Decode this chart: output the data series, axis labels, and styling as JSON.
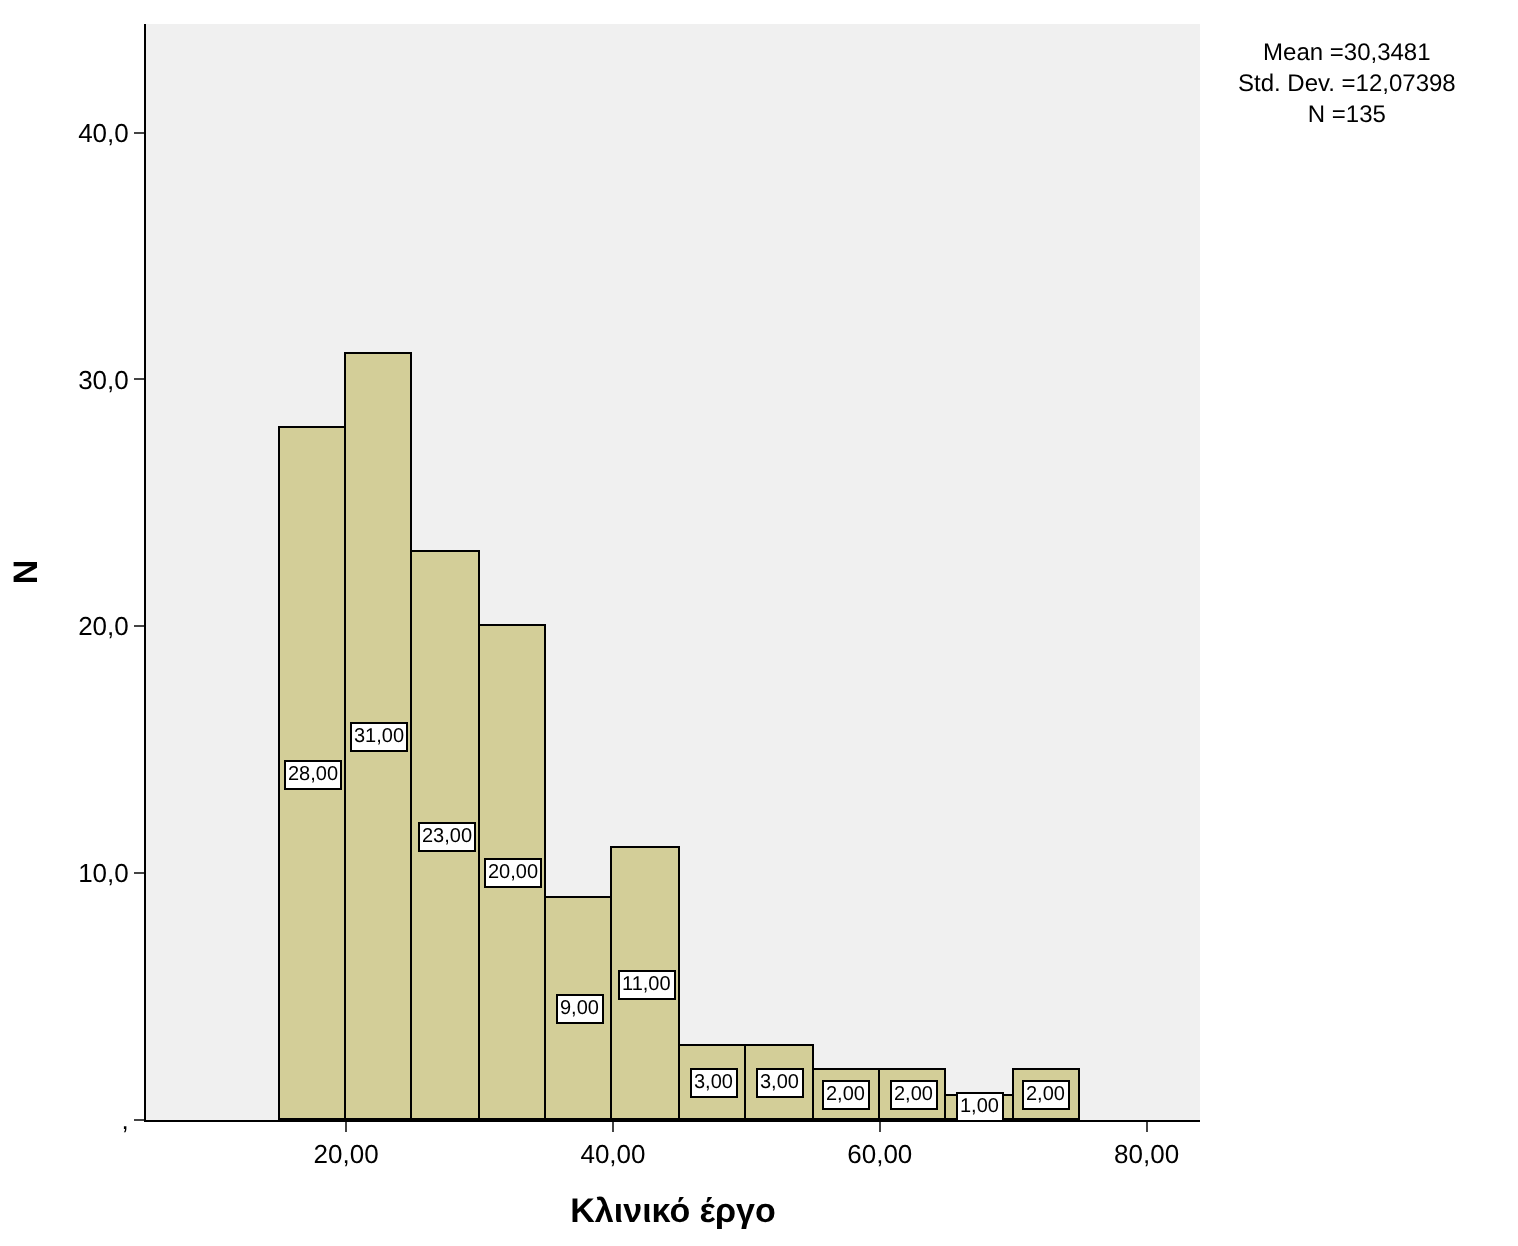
{
  "chart_data": {
    "type": "histogram",
    "xlabel": "Κλινικό έργο",
    "ylabel": "N",
    "bins": [
      15,
      20,
      25,
      30,
      35,
      40,
      45,
      50,
      55,
      60,
      65,
      70,
      75
    ],
    "values": [
      28,
      31,
      23,
      20,
      9,
      11,
      3,
      3,
      2,
      2,
      1,
      2
    ],
    "value_labels": [
      "28,00",
      "31,00",
      "23,00",
      "20,00",
      "9,00",
      "11,00",
      "3,00",
      "3,00",
      "2,00",
      "2,00",
      "1,00",
      "2,00"
    ],
    "color": "#d3ce98",
    "xlim": [
      5,
      84
    ],
    "xticks": [
      {
        "value": 20,
        "label": "20,00"
      },
      {
        "value": 40,
        "label": "40,00"
      },
      {
        "value": 60,
        "label": "60,00"
      },
      {
        "value": 80,
        "label": "80,00"
      }
    ],
    "ylim": [
      0,
      44.4
    ],
    "yticks": [
      {
        "value": 0,
        "label": ","
      },
      {
        "value": 10,
        "label": "10,0"
      },
      {
        "value": 20,
        "label": "20,0"
      },
      {
        "value": 30,
        "label": "30,0"
      },
      {
        "value": 40,
        "label": "40,0"
      }
    ],
    "annotations": [
      "Mean =30,3481",
      "Std. Dev. =12,07398",
      "N =135"
    ],
    "grid": false
  }
}
